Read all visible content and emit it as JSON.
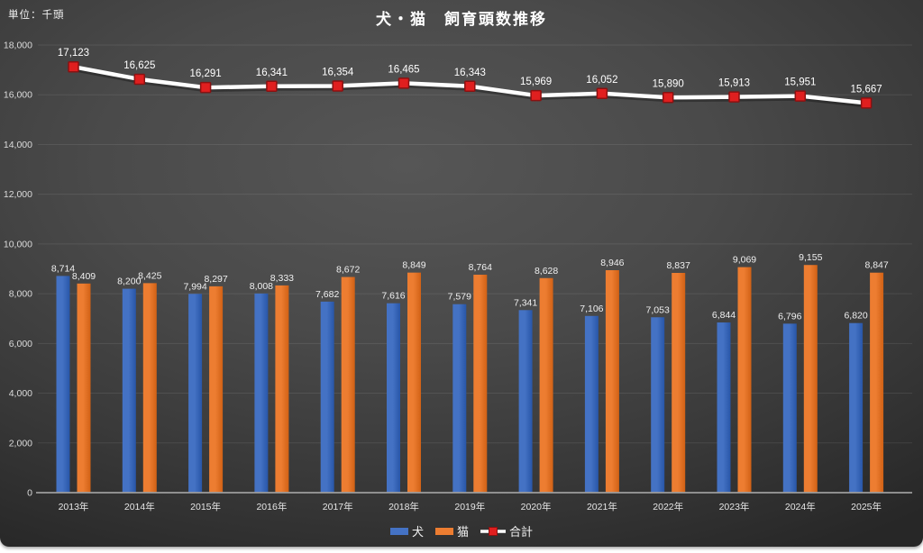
{
  "page": {
    "unit_label": "単位：千頭",
    "title": "犬・猫　飼育頭数推移"
  },
  "chart_data": {
    "type": "combo-bar-line",
    "title": "犬・猫　飼育頭数推移",
    "unit": "単位：千頭",
    "categories": [
      "2013年",
      "2014年",
      "2015年",
      "2016年",
      "2017年",
      "2018年",
      "2019年",
      "2020年",
      "2021年",
      "2022年",
      "2023年",
      "2024年",
      "2025年"
    ],
    "series": [
      {
        "name": "犬",
        "type": "bar",
        "color": "#4472C4",
        "values": [
          8714,
          8200,
          7994,
          8008,
          7682,
          7616,
          7579,
          7341,
          7106,
          7053,
          6844,
          6796,
          6820
        ]
      },
      {
        "name": "猫",
        "type": "bar",
        "color": "#ED7D31",
        "values": [
          8409,
          8425,
          8297,
          8333,
          8672,
          8849,
          8764,
          8628,
          8946,
          8837,
          9069,
          9155,
          8847
        ]
      },
      {
        "name": "合計",
        "type": "line",
        "color": "#FFFFFF",
        "marker_color": "#E01F1F",
        "values": [
          17123,
          16625,
          16291,
          16341,
          16354,
          16465,
          16343,
          15969,
          16052,
          15890,
          15913,
          15951,
          15667
        ]
      }
    ],
    "ylim": [
      0,
      18000
    ],
    "ytick_step": 2000,
    "grid": true,
    "data_labels": true,
    "legend_position": "bottom",
    "legend": [
      "犬",
      "猫",
      "合計"
    ]
  },
  "colors": {
    "background_center": "#565656",
    "background_edge": "#272727",
    "grid": "rgba(255,255,255,0.09)",
    "axis": "#9d9d9d",
    "text": "#f0f0f0",
    "dog_bar": "#4472C4",
    "cat_bar": "#ED7D31",
    "total_line": "#FFFFFF",
    "total_marker": "#E01F1F"
  }
}
